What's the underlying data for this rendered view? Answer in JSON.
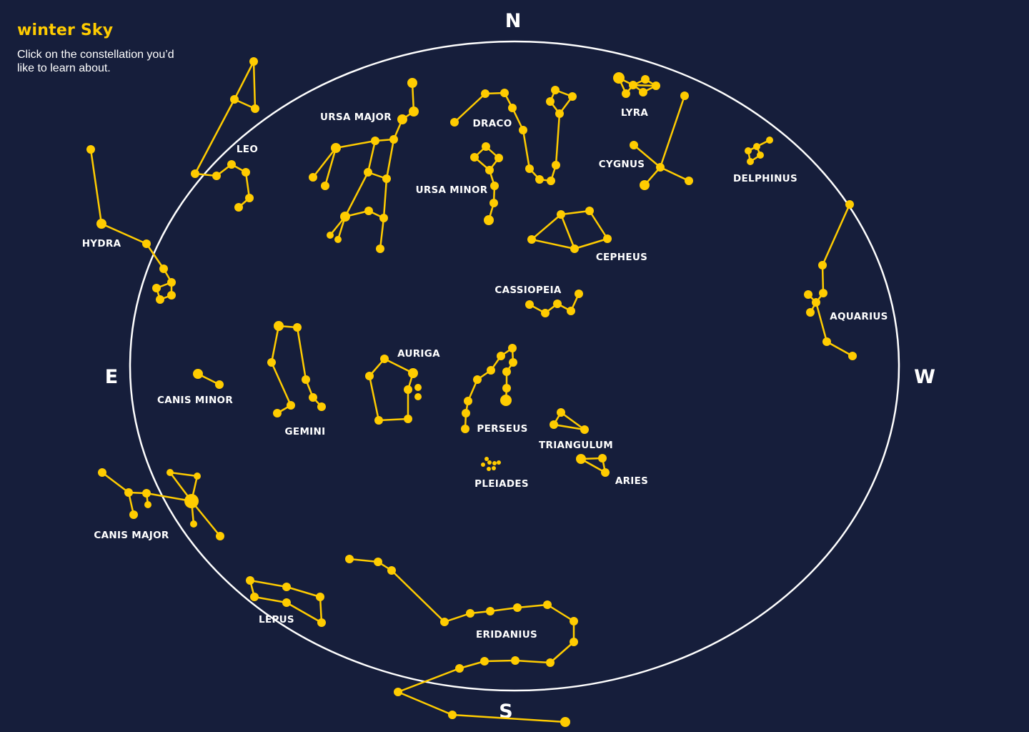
{
  "header": {
    "title": "winter Sky",
    "instructions": "Click on the constellation you’d like to learn about."
  },
  "compass": {
    "north": "N",
    "south": "S",
    "east": "E",
    "west": "W"
  },
  "colors": {
    "background": "#161e3b",
    "accent": "#ffcc00",
    "horizon": "#ffffff",
    "text": "#ffffff"
  },
  "constellations": [
    {
      "id": "leo",
      "name": "LEO"
    },
    {
      "id": "hydra",
      "name": "HYDRA"
    },
    {
      "id": "ursa-major",
      "name": "URSA MAJOR"
    },
    {
      "id": "draco",
      "name": "DRACO"
    },
    {
      "id": "ursa-minor",
      "name": "URSA MINOR"
    },
    {
      "id": "lyra",
      "name": "LYRA"
    },
    {
      "id": "cygnus",
      "name": "CYGNUS"
    },
    {
      "id": "delphinus",
      "name": "DELPHINUS"
    },
    {
      "id": "cepheus",
      "name": "CEPHEUS"
    },
    {
      "id": "cassiopeia",
      "name": "CASSIOPEIA"
    },
    {
      "id": "aquarius",
      "name": "AQUARIUS"
    },
    {
      "id": "canis-minor",
      "name": "CANIS MINOR"
    },
    {
      "id": "gemini",
      "name": "GEMINI"
    },
    {
      "id": "auriga",
      "name": "AURIGA"
    },
    {
      "id": "perseus",
      "name": "PERSEUS"
    },
    {
      "id": "triangulum",
      "name": "TRIANGULUM"
    },
    {
      "id": "pleiades",
      "name": "PLEIADES"
    },
    {
      "id": "aries",
      "name": "ARIES"
    },
    {
      "id": "canis-major",
      "name": "CANIS MAJOR"
    },
    {
      "id": "lepus",
      "name": "LEPUS"
    },
    {
      "id": "eridanius",
      "name": "ERIDANIUS"
    }
  ]
}
